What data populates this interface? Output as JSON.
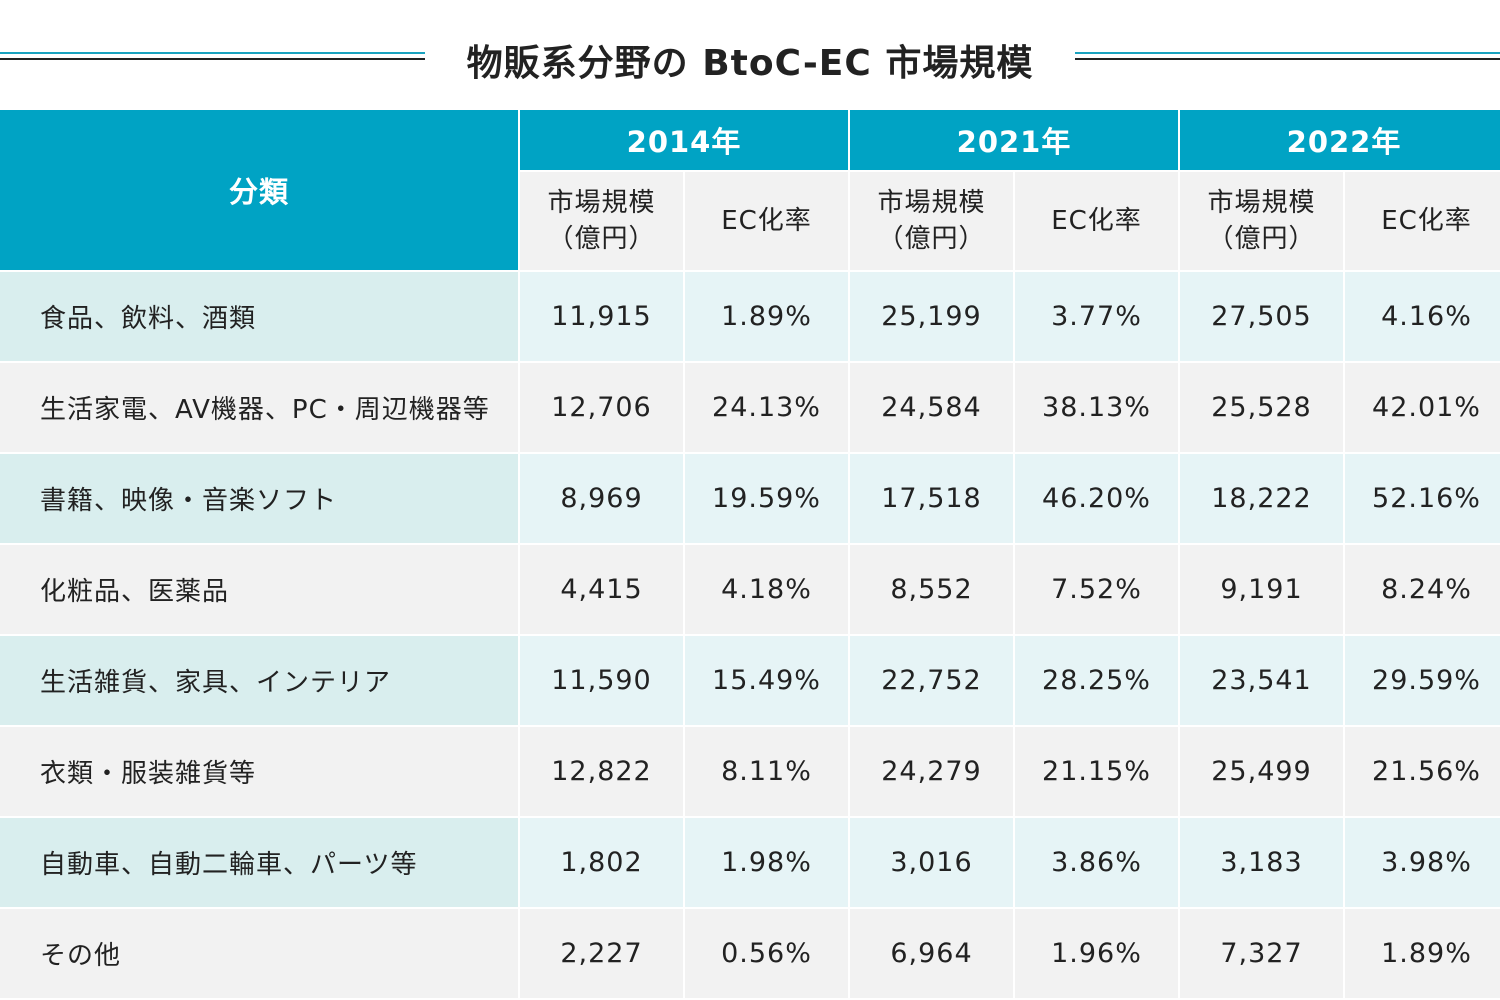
{
  "title": "物販系分野の BtoC-EC 市場規模",
  "colors": {
    "header": "#00a3c4",
    "subheader": "#f2f2f2",
    "row_alt_label": "#d9eeee",
    "row_alt": "#e6f4f6",
    "row": "#f2f2f2",
    "accent_line": "#1aa3c0"
  },
  "chart_data": {
    "type": "table",
    "title": "物販系分野の BtoC-EC 市場規模",
    "category_header": "分類",
    "years": [
      "2014年",
      "2021年",
      "2022年"
    ],
    "subheaders": [
      "市場規模\n（億円）",
      "EC化率"
    ],
    "rows": [
      {
        "label": "食品、飲料、酒類",
        "values": [
          "11,915",
          "1.89%",
          "25,199",
          "3.77%",
          "27,505",
          "4.16%"
        ]
      },
      {
        "label": "生活家電、AV機器、PC・周辺機器等",
        "values": [
          "12,706",
          "24.13%",
          "24,584",
          "38.13%",
          "25,528",
          "42.01%"
        ]
      },
      {
        "label": "書籍、映像・音楽ソフト",
        "values": [
          "8,969",
          "19.59%",
          "17,518",
          "46.20%",
          "18,222",
          "52.16%"
        ]
      },
      {
        "label": "化粧品、医薬品",
        "values": [
          "4,415",
          "4.18%",
          "8,552",
          "7.52%",
          "9,191",
          "8.24%"
        ]
      },
      {
        "label": "生活雑貨、家具、インテリア",
        "values": [
          "11,590",
          "15.49%",
          "22,752",
          "28.25%",
          "23,541",
          "29.59%"
        ]
      },
      {
        "label": "衣類・服装雑貨等",
        "values": [
          "12,822",
          "8.11%",
          "24,279",
          "21.15%",
          "25,499",
          "21.56%"
        ]
      },
      {
        "label": "自動車、自動二輪車、パーツ等",
        "values": [
          "1,802",
          "1.98%",
          "3,016",
          "3.86%",
          "3,183",
          "3.98%"
        ]
      },
      {
        "label": "その他",
        "values": [
          "2,227",
          "0.56%",
          "6,964",
          "1.96%",
          "7,327",
          "1.89%"
        ]
      }
    ]
  }
}
